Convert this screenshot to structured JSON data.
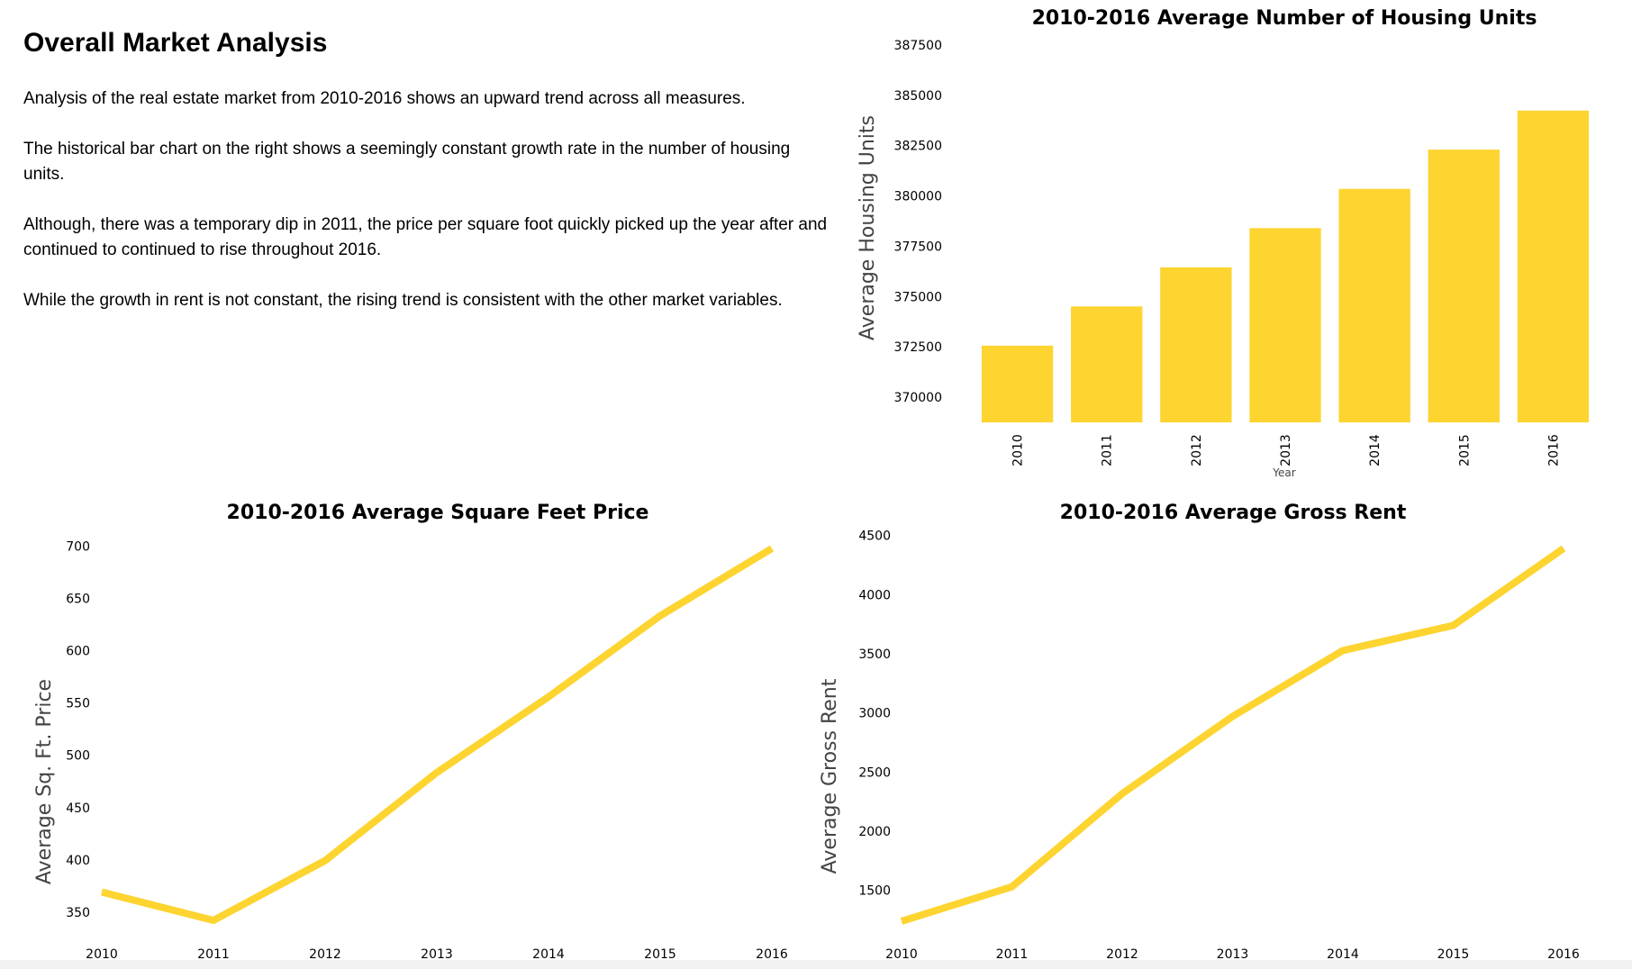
{
  "analysis": {
    "heading": "Overall Market Analysis",
    "paragraphs": [
      "Analysis of the real estate market from 2010-2016 shows an upward trend across all measures.",
      "The historical bar chart on the right shows a seemingly constant growth rate in the number of housing units.",
      "Although, there was a temporary dip in 2011, the price per square foot quickly picked up the year after and continued to continued to rise throughout 2016.",
      "While the growth in rent is not constant, the rising trend is consistent with the other market variables."
    ]
  },
  "colors": {
    "series": "#FDD430",
    "background": "#ffffff",
    "text": "#000000",
    "axis_label": "#444444"
  },
  "chart_data": [
    {
      "type": "bar",
      "title": "2010-2016 Average Number of Housing Units",
      "categories": [
        "2010",
        "2011",
        "2012",
        "2013",
        "2014",
        "2015",
        "2016"
      ],
      "values": [
        372560,
        374510,
        376450,
        378400,
        380350,
        382300,
        384240
      ],
      "xlabel": "Year",
      "ylabel": "Average Housing Units",
      "yticks": [
        370000,
        372500,
        375000,
        377500,
        380000,
        382500,
        385000,
        387500
      ],
      "ylim": [
        368750,
        387900
      ],
      "grid": false
    },
    {
      "type": "line",
      "title": "2010-2016 Average Square Feet Price",
      "x": [
        "2010",
        "2011",
        "2012",
        "2013",
        "2014",
        "2015",
        "2016"
      ],
      "values": [
        369.3,
        342.2,
        399.4,
        483.6,
        555.9,
        633.4,
        697.8
      ],
      "xlabel": "",
      "ylabel": "Average Sq. Ft. Price",
      "yticks": [
        350,
        400,
        450,
        500,
        550,
        600,
        650,
        700
      ],
      "ylim": [
        342.2,
        697.8
      ],
      "grid": false
    },
    {
      "type": "line",
      "title": "2010-2016 Average Gross Rent",
      "x": [
        "2010",
        "2011",
        "2012",
        "2013",
        "2014",
        "2015",
        "2016"
      ],
      "values": [
        1239,
        1531,
        2318,
        2971,
        3528,
        3740,
        4391
      ],
      "xlabel": "",
      "ylabel": "Average Gross Rent",
      "yticks": [
        1500,
        2000,
        2500,
        3000,
        3500,
        4000,
        4500
      ],
      "ylim": [
        1239,
        4391
      ],
      "grid": false
    }
  ]
}
